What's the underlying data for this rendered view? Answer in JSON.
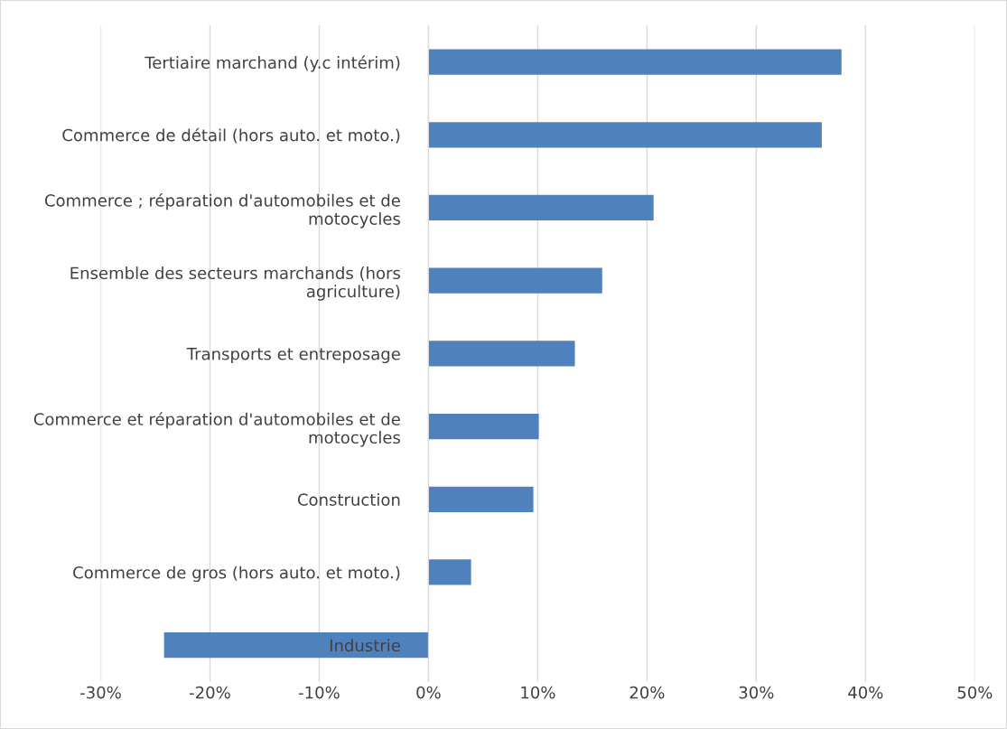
{
  "chart_data": {
    "type": "bar",
    "orientation": "horizontal",
    "categories": [
      "Tertiaire marchand (y.c intérim)",
      "Commerce de détail (hors auto. et moto.)",
      "Commerce ; réparation d'automobiles et de motocycles",
      "Ensemble des secteurs marchands (hors agriculture)",
      "Transports et entreposage",
      "Commerce et réparation d'automobiles et de motocycles",
      "Construction",
      "Commerce de gros (hors auto. et moto.)",
      "Industrie"
    ],
    "values": [
      0.378,
      0.36,
      0.206,
      0.159,
      0.134,
      0.101,
      0.096,
      0.039,
      -0.242
    ],
    "color": "#4f81bd",
    "xlim": [
      -0.3,
      0.5
    ],
    "xticks": [
      {
        "value": -0.3,
        "label": "-30%"
      },
      {
        "value": -0.2,
        "label": "-20%"
      },
      {
        "value": -0.1,
        "label": "-10%"
      },
      {
        "value": 0,
        "label": "0%"
      },
      {
        "value": 0.1,
        "label": "10%"
      },
      {
        "value": 0.2,
        "label": "20%"
      },
      {
        "value": 0.3,
        "label": "30%"
      },
      {
        "value": 0.4,
        "label": "40%"
      },
      {
        "value": 0.5,
        "label": "50%"
      }
    ],
    "grid": "x",
    "legend": false
  }
}
